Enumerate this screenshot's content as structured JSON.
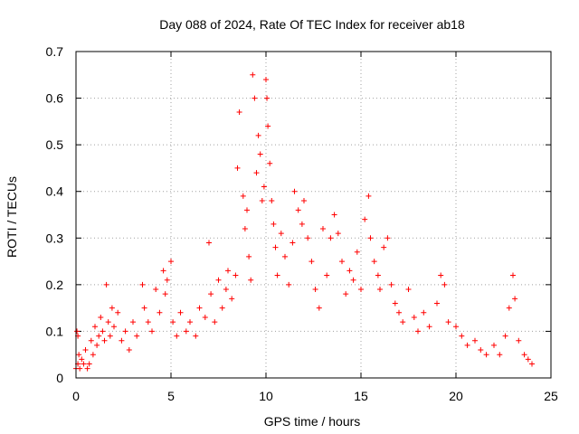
{
  "chart_data": {
    "type": "scatter",
    "title": "Day 088 of 2024, Rate Of TEC Index for receiver ab18",
    "xlabel": "GPS time / hours",
    "ylabel": "ROTI / TECUs",
    "xlim": [
      0,
      25
    ],
    "ylim": [
      0,
      0.7
    ],
    "xticks": [
      0,
      5,
      10,
      15,
      20,
      25
    ],
    "xtick_labels": [
      "0",
      "5",
      "10",
      "15",
      "20",
      "25"
    ],
    "yticks": [
      0,
      0.1,
      0.2,
      0.3,
      0.4,
      0.5,
      0.6,
      0.7
    ],
    "ytick_labels": [
      "0",
      "0.1",
      "0.2",
      "0.3",
      "0.4",
      "0.5",
      "0.6",
      "0.7"
    ],
    "grid": true,
    "marker": "+",
    "color": "#ff0000",
    "series": [
      {
        "name": "ROTI",
        "points": [
          [
            0.0,
            0.02
          ],
          [
            0.05,
            0.1
          ],
          [
            0.1,
            0.09
          ],
          [
            0.1,
            0.03
          ],
          [
            0.15,
            0.05
          ],
          [
            0.2,
            0.02
          ],
          [
            0.3,
            0.04
          ],
          [
            0.4,
            0.03
          ],
          [
            0.5,
            0.06
          ],
          [
            0.6,
            0.02
          ],
          [
            0.7,
            0.03
          ],
          [
            0.8,
            0.08
          ],
          [
            0.9,
            0.05
          ],
          [
            1.0,
            0.11
          ],
          [
            1.1,
            0.07
          ],
          [
            1.2,
            0.09
          ],
          [
            1.3,
            0.13
          ],
          [
            1.4,
            0.1
          ],
          [
            1.5,
            0.08
          ],
          [
            1.6,
            0.2
          ],
          [
            1.7,
            0.12
          ],
          [
            1.8,
            0.09
          ],
          [
            1.9,
            0.15
          ],
          [
            2.0,
            0.11
          ],
          [
            2.2,
            0.14
          ],
          [
            2.4,
            0.08
          ],
          [
            2.6,
            0.1
          ],
          [
            2.8,
            0.06
          ],
          [
            3.0,
            0.12
          ],
          [
            3.2,
            0.09
          ],
          [
            3.5,
            0.2
          ],
          [
            3.6,
            0.15
          ],
          [
            3.8,
            0.12
          ],
          [
            4.0,
            0.1
          ],
          [
            4.2,
            0.19
          ],
          [
            4.4,
            0.14
          ],
          [
            4.6,
            0.23
          ],
          [
            4.7,
            0.18
          ],
          [
            4.8,
            0.21
          ],
          [
            5.0,
            0.25
          ],
          [
            5.1,
            0.12
          ],
          [
            5.3,
            0.09
          ],
          [
            5.5,
            0.14
          ],
          [
            5.8,
            0.1
          ],
          [
            6.0,
            0.12
          ],
          [
            6.3,
            0.09
          ],
          [
            6.5,
            0.15
          ],
          [
            6.8,
            0.13
          ],
          [
            7.0,
            0.29
          ],
          [
            7.1,
            0.18
          ],
          [
            7.3,
            0.12
          ],
          [
            7.5,
            0.21
          ],
          [
            7.7,
            0.15
          ],
          [
            7.9,
            0.19
          ],
          [
            8.0,
            0.23
          ],
          [
            8.2,
            0.17
          ],
          [
            8.4,
            0.22
          ],
          [
            8.5,
            0.45
          ],
          [
            8.6,
            0.57
          ],
          [
            8.8,
            0.39
          ],
          [
            8.9,
            0.32
          ],
          [
            9.0,
            0.36
          ],
          [
            9.1,
            0.26
          ],
          [
            9.2,
            0.21
          ],
          [
            9.3,
            0.65
          ],
          [
            9.4,
            0.6
          ],
          [
            9.5,
            0.44
          ],
          [
            9.6,
            0.52
          ],
          [
            9.7,
            0.48
          ],
          [
            9.8,
            0.38
          ],
          [
            9.9,
            0.41
          ],
          [
            10.0,
            0.64
          ],
          [
            10.05,
            0.6
          ],
          [
            10.1,
            0.54
          ],
          [
            10.2,
            0.46
          ],
          [
            10.3,
            0.38
          ],
          [
            10.4,
            0.33
          ],
          [
            10.5,
            0.28
          ],
          [
            10.6,
            0.22
          ],
          [
            10.8,
            0.31
          ],
          [
            11.0,
            0.26
          ],
          [
            11.2,
            0.2
          ],
          [
            11.4,
            0.29
          ],
          [
            11.5,
            0.4
          ],
          [
            11.7,
            0.36
          ],
          [
            11.9,
            0.33
          ],
          [
            12.0,
            0.38
          ],
          [
            12.2,
            0.3
          ],
          [
            12.4,
            0.25
          ],
          [
            12.6,
            0.19
          ],
          [
            12.8,
            0.15
          ],
          [
            13.0,
            0.32
          ],
          [
            13.2,
            0.22
          ],
          [
            13.4,
            0.3
          ],
          [
            13.6,
            0.35
          ],
          [
            13.8,
            0.31
          ],
          [
            14.0,
            0.25
          ],
          [
            14.2,
            0.18
          ],
          [
            14.4,
            0.23
          ],
          [
            14.6,
            0.21
          ],
          [
            14.8,
            0.27
          ],
          [
            15.0,
            0.19
          ],
          [
            15.2,
            0.34
          ],
          [
            15.4,
            0.39
          ],
          [
            15.5,
            0.3
          ],
          [
            15.7,
            0.25
          ],
          [
            15.9,
            0.22
          ],
          [
            16.0,
            0.19
          ],
          [
            16.2,
            0.28
          ],
          [
            16.4,
            0.3
          ],
          [
            16.6,
            0.2
          ],
          [
            16.8,
            0.16
          ],
          [
            17.0,
            0.14
          ],
          [
            17.2,
            0.12
          ],
          [
            17.5,
            0.19
          ],
          [
            17.8,
            0.13
          ],
          [
            18.0,
            0.1
          ],
          [
            18.3,
            0.14
          ],
          [
            18.6,
            0.11
          ],
          [
            19.0,
            0.16
          ],
          [
            19.2,
            0.22
          ],
          [
            19.4,
            0.2
          ],
          [
            19.6,
            0.12
          ],
          [
            20.0,
            0.11
          ],
          [
            20.3,
            0.09
          ],
          [
            20.6,
            0.07
          ],
          [
            21.0,
            0.08
          ],
          [
            21.3,
            0.06
          ],
          [
            21.6,
            0.05
          ],
          [
            22.0,
            0.07
          ],
          [
            22.3,
            0.05
          ],
          [
            22.6,
            0.09
          ],
          [
            22.8,
            0.15
          ],
          [
            23.0,
            0.22
          ],
          [
            23.1,
            0.17
          ],
          [
            23.3,
            0.08
          ],
          [
            23.6,
            0.05
          ],
          [
            23.8,
            0.04
          ],
          [
            24.0,
            0.03
          ]
        ]
      }
    ]
  }
}
